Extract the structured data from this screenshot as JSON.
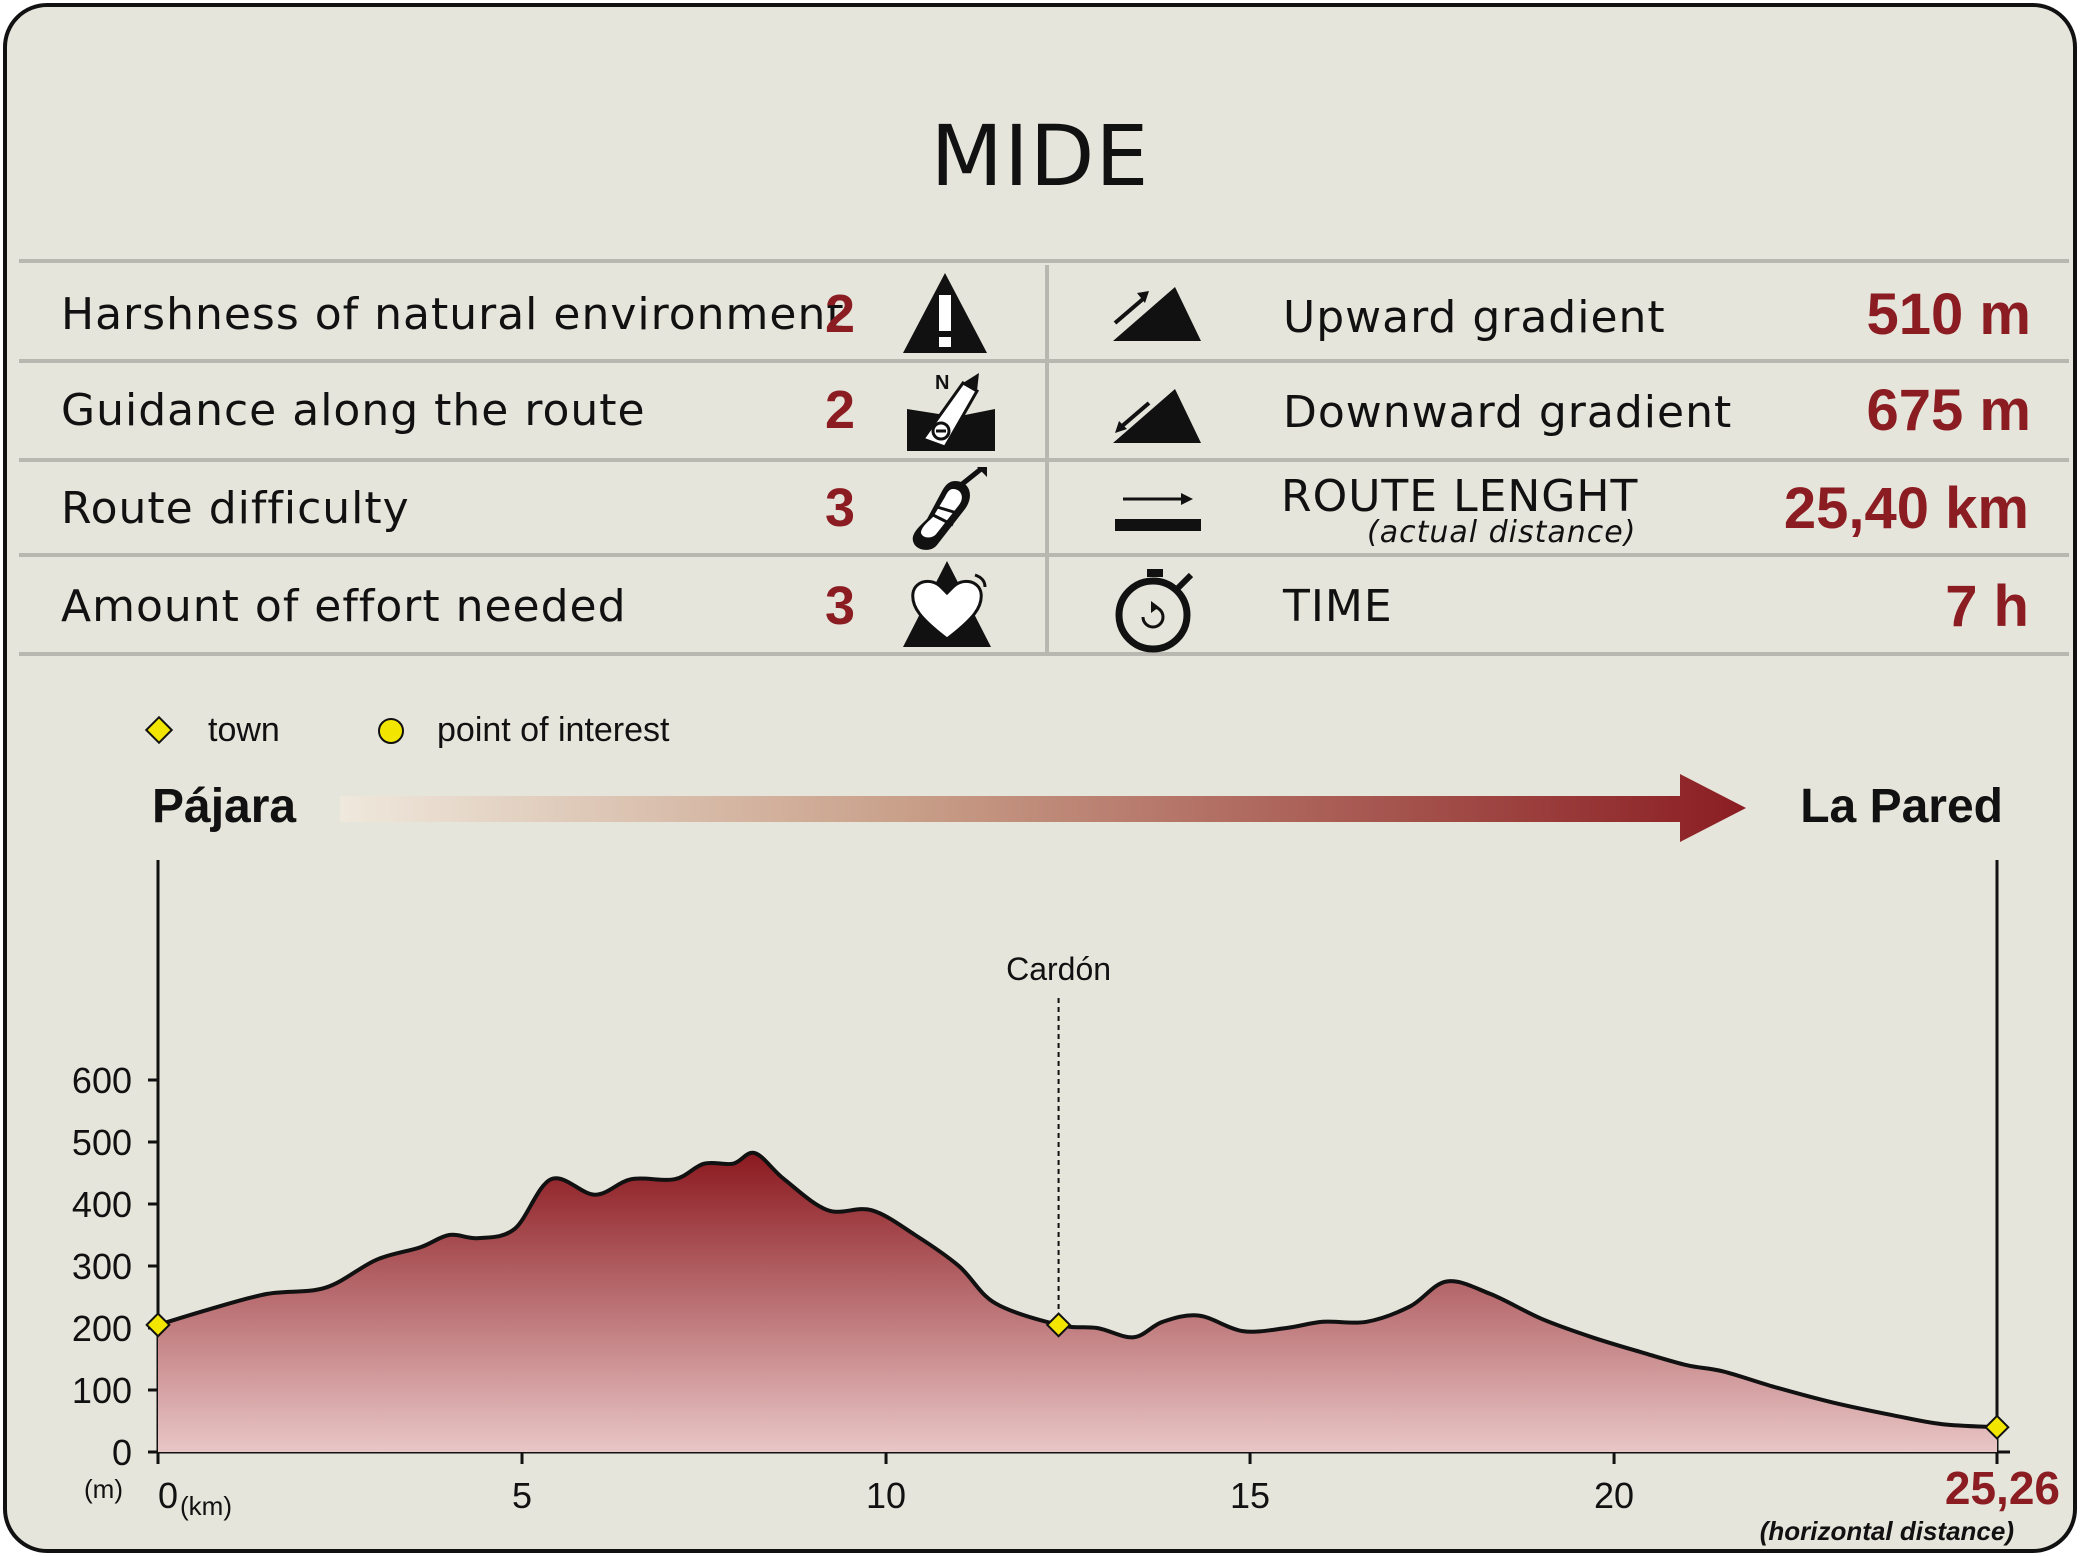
{
  "header": {
    "title": "MIDE"
  },
  "mide": {
    "rows": [
      {
        "label": "Harshness of natural environment",
        "value": "2",
        "icon": "warning-icon"
      },
      {
        "label": "Guidance along the route",
        "value": "2",
        "icon": "compass-icon"
      },
      {
        "label": "Route difficulty",
        "value": "3",
        "icon": "footprint-icon"
      },
      {
        "label": "Amount of effort needed",
        "value": "3",
        "icon": "heart-icon"
      }
    ],
    "stats": [
      {
        "label": "Upward gradient",
        "value": "510 m",
        "icon": "upward-slope-icon"
      },
      {
        "label": "Downward gradient",
        "value": "675 m",
        "icon": "downward-slope-icon"
      },
      {
        "label": "ROUTE LENGHT",
        "sublabel": "(actual distance)",
        "value": "25,40 km",
        "icon": "distance-arrow-icon"
      },
      {
        "label": "TIME",
        "value": "7 h",
        "icon": "stopwatch-icon"
      }
    ]
  },
  "legend": {
    "town": "town",
    "poi": "point of interest"
  },
  "route": {
    "start": "Pájara",
    "end": "La Pared"
  },
  "colors": {
    "accent": "#8b1d22",
    "background": "#e5e5dc",
    "marker": "#f2e600"
  },
  "chart_data": {
    "type": "area",
    "title": "",
    "xlabel": "(km)",
    "ylabel": "(m)",
    "xlim": [
      0,
      25.26
    ],
    "ylim": [
      0,
      600
    ],
    "y_ticks": [
      0,
      100,
      200,
      300,
      400,
      500,
      600
    ],
    "x_ticks": [
      0,
      5,
      10,
      15,
      20
    ],
    "x_tick_labels": [
      "0",
      "5",
      "10",
      "15",
      "20"
    ],
    "x_end_label": "25,26",
    "x_end_note": "(horizontal distance)",
    "x": [
      0,
      0.7,
      1.5,
      2.3,
      3.0,
      3.6,
      4.0,
      4.4,
      4.9,
      5.4,
      6.0,
      6.5,
      7.1,
      7.5,
      7.9,
      8.2,
      8.6,
      9.2,
      9.8,
      10.4,
      11.0,
      11.5,
      12.37,
      12.9,
      13.4,
      13.8,
      14.3,
      14.9,
      15.5,
      16.0,
      16.6,
      17.2,
      17.7,
      18.3,
      19.0,
      19.7,
      20.4,
      21.0,
      21.5,
      22.2,
      23.0,
      23.8,
      24.5,
      25.26
    ],
    "y": [
      205,
      230,
      255,
      265,
      310,
      330,
      350,
      345,
      360,
      440,
      415,
      440,
      440,
      465,
      465,
      482,
      440,
      390,
      390,
      350,
      300,
      240,
      205,
      200,
      185,
      210,
      220,
      195,
      200,
      210,
      210,
      235,
      275,
      255,
      215,
      185,
      160,
      140,
      130,
      105,
      80,
      60,
      45,
      40
    ],
    "towns": [
      {
        "x": 0,
        "y": 205
      },
      {
        "x": 12.37,
        "y": 205,
        "label": "Cardón"
      },
      {
        "x": 25.26,
        "y": 40
      }
    ]
  }
}
